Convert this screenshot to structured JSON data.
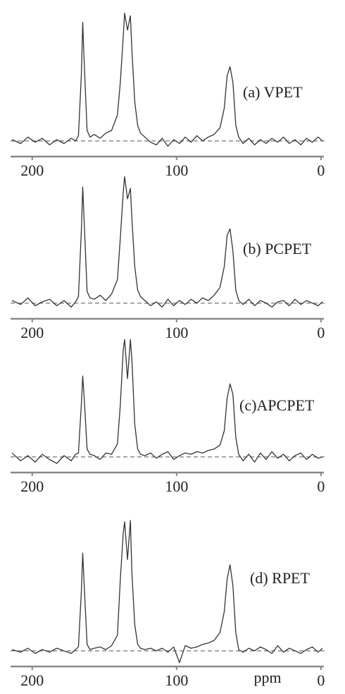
{
  "chart_data": [
    {
      "type": "line",
      "xlim": [
        215,
        -2
      ],
      "ylim": [
        -12,
        100
      ],
      "xticks": [
        200,
        100,
        0
      ],
      "x": [
        214,
        208,
        203,
        198,
        193,
        188,
        183,
        178,
        173,
        170,
        168,
        166,
        165,
        164,
        162,
        160,
        157,
        153,
        149,
        145,
        141,
        139,
        137,
        136,
        134,
        132,
        131,
        129,
        127,
        125,
        122,
        118,
        114,
        110,
        106,
        102,
        98,
        94,
        90,
        86,
        82,
        78,
        74,
        70,
        67,
        65,
        63,
        61,
        59,
        57,
        54,
        50,
        46,
        42,
        38,
        34,
        30,
        26,
        22,
        18,
        14,
        10,
        6,
        2,
        -1
      ],
      "series": [
        {
          "name": "(a) VPET",
          "color": "#333333",
          "values": [
            1,
            -2,
            3,
            -1,
            2,
            -3,
            1,
            -2,
            2,
            0,
            4,
            50,
            91,
            60,
            8,
            3,
            5,
            2,
            6,
            8,
            20,
            45,
            80,
            98,
            85,
            96,
            70,
            30,
            12,
            6,
            3,
            -1,
            -3,
            2,
            -4,
            1,
            -2,
            3,
            -1,
            4,
            0,
            3,
            5,
            10,
            25,
            50,
            57,
            45,
            12,
            3,
            -2,
            2,
            -3,
            1,
            -2,
            2,
            -1,
            3,
            -2,
            1,
            -3,
            2,
            -1,
            3,
            0
          ]
        }
      ]
    },
    {
      "type": "line",
      "xlim": [
        215,
        -2
      ],
      "ylim": [
        -12,
        100
      ],
      "xticks": [
        200,
        100,
        0
      ],
      "x": [
        214,
        208,
        203,
        198,
        193,
        188,
        183,
        178,
        173,
        170,
        168,
        166,
        165,
        164,
        162,
        160,
        157,
        153,
        149,
        145,
        141,
        139,
        137,
        136,
        134,
        132,
        131,
        129,
        127,
        125,
        122,
        118,
        114,
        110,
        106,
        102,
        98,
        94,
        90,
        86,
        82,
        78,
        74,
        70,
        67,
        65,
        63,
        61,
        59,
        57,
        54,
        50,
        46,
        42,
        38,
        34,
        30,
        26,
        22,
        18,
        14,
        10,
        6,
        2,
        -1
      ],
      "series": [
        {
          "name": "(b) PCPET",
          "color": "#333333",
          "values": [
            2,
            -1,
            4,
            -2,
            1,
            3,
            -2,
            2,
            -3,
            1,
            5,
            55,
            89,
            62,
            9,
            4,
            3,
            6,
            2,
            7,
            18,
            50,
            85,
            97,
            80,
            88,
            65,
            28,
            10,
            5,
            2,
            -2,
            1,
            -3,
            3,
            -2,
            2,
            -1,
            3,
            0,
            4,
            2,
            6,
            12,
            28,
            52,
            57,
            40,
            10,
            2,
            -1,
            3,
            -2,
            2,
            0,
            -3,
            1,
            2,
            -2,
            3,
            -1,
            2,
            0,
            -2,
            1
          ]
        }
      ]
    },
    {
      "type": "line",
      "xlim": [
        215,
        -2
      ],
      "ylim": [
        -12,
        100
      ],
      "xticks": [
        200,
        100,
        0
      ],
      "x": [
        214,
        208,
        203,
        198,
        193,
        188,
        183,
        178,
        173,
        170,
        168,
        166,
        165,
        164,
        162,
        160,
        157,
        153,
        149,
        145,
        141,
        139,
        137,
        136,
        134,
        132,
        131,
        129,
        127,
        125,
        122,
        118,
        114,
        110,
        106,
        102,
        98,
        94,
        90,
        86,
        82,
        78,
        74,
        70,
        67,
        65,
        63,
        61,
        59,
        57,
        54,
        50,
        46,
        42,
        38,
        34,
        30,
        26,
        22,
        18,
        14,
        10,
        6,
        2,
        -1
      ],
      "series": [
        {
          "name": "(c)APCPET",
          "color": "#333333",
          "values": [
            3,
            -3,
            1,
            -4,
            2,
            -2,
            -5,
            1,
            -3,
            2,
            3,
            40,
            62,
            45,
            6,
            2,
            1,
            -2,
            3,
            2,
            10,
            40,
            82,
            90,
            60,
            90,
            75,
            25,
            6,
            2,
            1,
            3,
            -1,
            2,
            4,
            -2,
            1,
            3,
            2,
            4,
            3,
            5,
            6,
            9,
            20,
            45,
            56,
            48,
            15,
            2,
            -3,
            2,
            -4,
            3,
            -2,
            4,
            -1,
            2,
            -3,
            1,
            3,
            -2,
            2,
            -1,
            0
          ]
        }
      ]
    },
    {
      "type": "line",
      "xlim": [
        215,
        -2
      ],
      "ylim": [
        -12,
        100
      ],
      "xticks": [
        200,
        100,
        0
      ],
      "xlabel": "ppm",
      "x": [
        214,
        208,
        203,
        198,
        193,
        188,
        183,
        178,
        173,
        170,
        168,
        166,
        165,
        164,
        162,
        160,
        157,
        153,
        149,
        145,
        141,
        139,
        137,
        136,
        134,
        132,
        131,
        129,
        127,
        125,
        122,
        118,
        114,
        110,
        106,
        102,
        98,
        94,
        90,
        86,
        82,
        78,
        74,
        70,
        67,
        65,
        63,
        61,
        59,
        57,
        54,
        50,
        46,
        42,
        38,
        34,
        30,
        26,
        22,
        18,
        14,
        10,
        6,
        2,
        -1
      ],
      "series": [
        {
          "name": "(d) RPET",
          "color": "#333333",
          "values": [
            1,
            -1,
            2,
            -2,
            1,
            -1,
            2,
            0,
            -2,
            1,
            3,
            45,
            75,
            50,
            5,
            1,
            2,
            3,
            1,
            4,
            12,
            55,
            90,
            99,
            70,
            100,
            60,
            20,
            5,
            2,
            1,
            2,
            0,
            2,
            -1,
            3,
            -9,
            4,
            2,
            3,
            5,
            6,
            8,
            14,
            30,
            55,
            66,
            50,
            14,
            1,
            -1,
            2,
            0,
            3,
            1,
            -2,
            4,
            -1,
            2,
            0,
            -2,
            1,
            3,
            -1,
            2
          ]
        }
      ]
    }
  ]
}
